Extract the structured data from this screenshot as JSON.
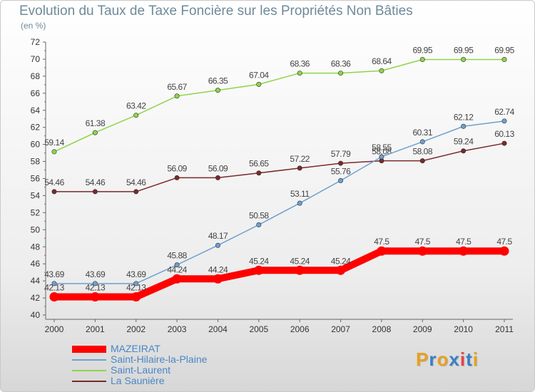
{
  "header": {
    "title": "Evolution du Taux de Taxe Foncière sur les Propriétés Non Bâties",
    "subtitle": "(en %)"
  },
  "logo": {
    "text": "Proxiti",
    "colors": [
      "#e8a020",
      "#3a7fc4",
      "#e8a020",
      "#3a7fc4",
      "#e84040",
      "#3a7fc4",
      "#e8a020"
    ]
  },
  "chart_data": {
    "type": "line",
    "title": "Evolution du Taux de Taxe Foncière sur les Propriétés Non Bâties",
    "xlabel": "",
    "ylabel": "(en %)",
    "x": [
      "2000",
      "2001",
      "2002",
      "2003",
      "2004",
      "2005",
      "2006",
      "2007",
      "2008",
      "2009",
      "2010",
      "2011"
    ],
    "ylim": [
      40,
      72
    ],
    "yticks": [
      40,
      42,
      44,
      46,
      48,
      50,
      52,
      54,
      56,
      58,
      60,
      62,
      64,
      66,
      68,
      70,
      72
    ],
    "grid": false,
    "legend_position": "bottom-left",
    "series": [
      {
        "name": "MAZEIRAT",
        "color": "#ff0000",
        "labels": [
          "42.13",
          "42.13",
          "42.13",
          "44.24",
          "44.24",
          "45.24",
          "45.24",
          "45.24",
          "47.5",
          "47.5",
          "47.5",
          "47.5"
        ],
        "values": [
          42.13,
          42.13,
          42.13,
          44.24,
          44.24,
          45.24,
          45.24,
          45.24,
          47.5,
          47.5,
          47.5,
          47.5
        ]
      },
      {
        "name": "Saint-Hilaire-la-Plaine",
        "color": "#6ea0d0",
        "labels": [
          "43.69",
          "43.69",
          "43.69",
          "45.88",
          "48.17",
          "50.58",
          "53.11",
          "55.76",
          "58.55",
          "60.31",
          "62.12",
          "62.74"
        ],
        "values": [
          43.69,
          43.69,
          43.69,
          45.88,
          48.17,
          50.58,
          53.11,
          55.76,
          58.55,
          60.31,
          62.12,
          62.74
        ]
      },
      {
        "name": "Saint-Laurent",
        "color": "#8fd44a",
        "labels": [
          "59.14",
          "61.38",
          "63.42",
          "65.67",
          "66.35",
          "67.04",
          "68.36",
          "68.36",
          "68.64",
          "69.95",
          "69.95",
          "69.95"
        ],
        "values": [
          59.14,
          61.38,
          63.42,
          65.67,
          66.35,
          67.04,
          68.36,
          68.36,
          68.64,
          69.95,
          69.95,
          69.95
        ]
      },
      {
        "name": "La Saunière",
        "color": "#7a2a2a",
        "labels": [
          "54.46",
          "54.46",
          "54.46",
          "56.09",
          "56.09",
          "56.65",
          "57.22",
          "57.79",
          "58.08",
          "58.08",
          "59.24",
          "60.13"
        ],
        "values": [
          54.46,
          54.46,
          54.46,
          56.09,
          56.09,
          56.65,
          57.22,
          57.79,
          58.08,
          58.08,
          59.24,
          60.13
        ]
      }
    ]
  }
}
